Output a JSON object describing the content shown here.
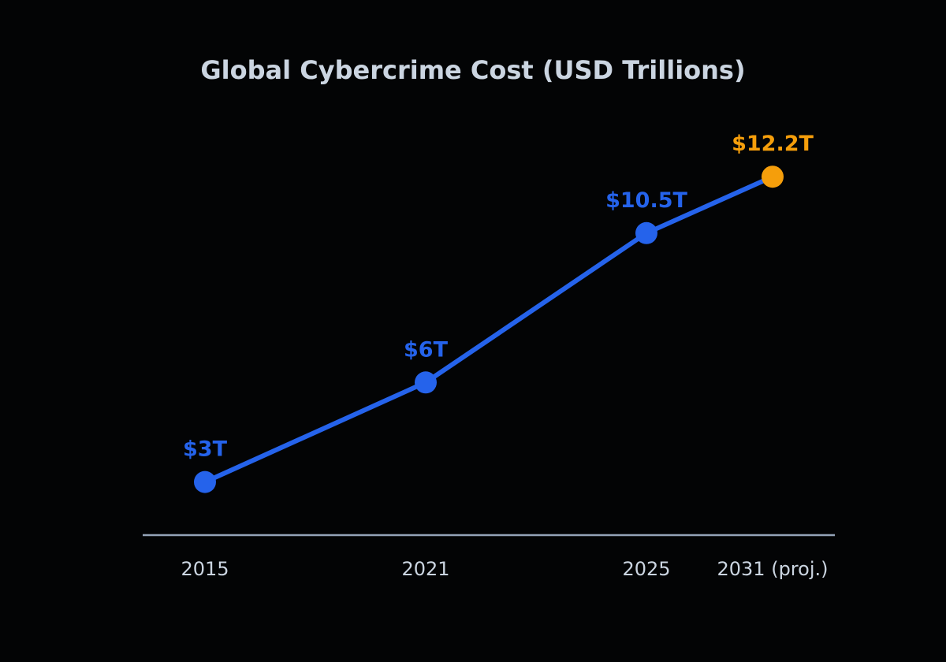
{
  "chart_data": {
    "type": "line",
    "title": "Global Cybercrime Cost (USD Trillions)",
    "xlabel": "",
    "ylabel": "",
    "categories": [
      "2015",
      "2021",
      "2025",
      "2031 (proj.)"
    ],
    "x": [
      2015,
      2021,
      2025,
      2031
    ],
    "series": [
      {
        "values": [
          3,
          6,
          10.5,
          12.2
        ],
        "labels": [
          "$3T",
          "$6T",
          "$10.5T",
          "$12.2T"
        ],
        "projected": [
          false,
          false,
          false,
          true
        ]
      }
    ],
    "ylim": [
      1.4,
      14.2
    ],
    "grid": false,
    "legend": "none",
    "colors": {
      "line": "#2563eb",
      "point": "#2563eb",
      "label": "#2563eb",
      "projected": "#f59e0b",
      "axis": "#94a3b8",
      "text": "#cbd5e1",
      "background": "#030405"
    }
  }
}
